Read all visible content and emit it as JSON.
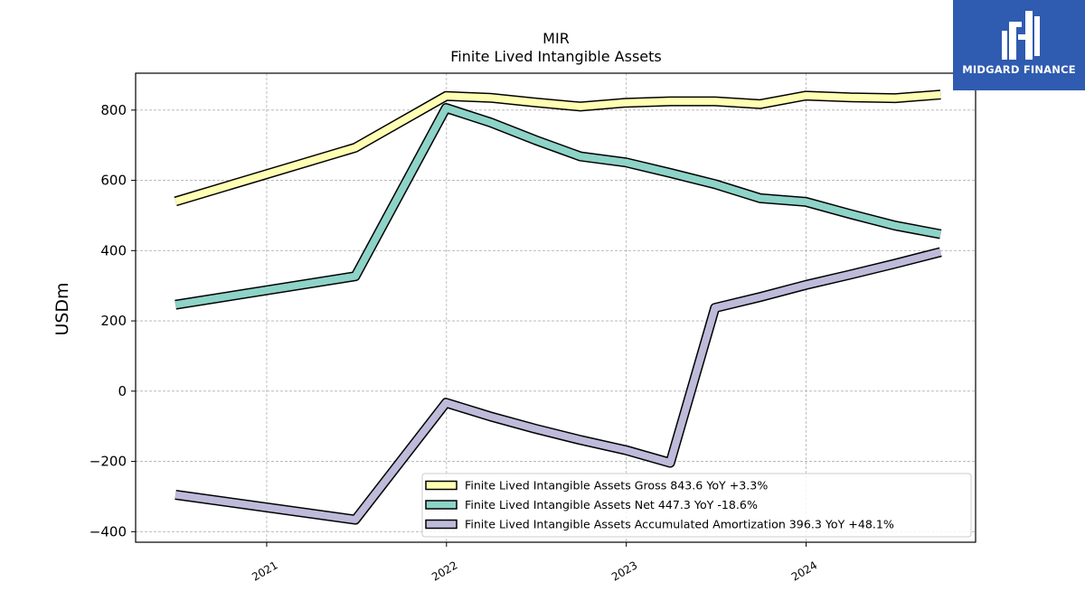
{
  "chart_data": {
    "type": "line",
    "title": "MIR",
    "subtitle": "Finite Lived Intangible Assets",
    "ylabel": "USDm",
    "xlabel": "",
    "ylim": [
      -430,
      905
    ],
    "xlim": [
      "2020-04-10",
      "2024-12-10"
    ],
    "yticks": [
      -400,
      -200,
      0,
      200,
      400,
      600,
      800
    ],
    "ytick_labels": [
      "−400",
      "−200",
      "0",
      "200",
      "400",
      "600",
      "800"
    ],
    "xticks": [
      "2021-01-01",
      "2022-01-01",
      "2023-01-01",
      "2024-01-01"
    ],
    "xtick_labels": [
      "2021",
      "2022",
      "2023",
      "2024"
    ],
    "grid": true,
    "legend_position": "lower-right",
    "series": [
      {
        "name": "Finite Lived Intangible Assets Gross",
        "legend_label": "Finite Lived Intangible Assets Gross  843.6 YoY +3.3%",
        "color": "#ffffb3",
        "points": [
          [
            "2020-06-30",
            540
          ],
          [
            "2021-06-30",
            693
          ],
          [
            "2021-12-31",
            840
          ],
          [
            "2022-03-31",
            835
          ],
          [
            "2022-06-30",
            822
          ],
          [
            "2022-09-30",
            810
          ],
          [
            "2022-12-31",
            821
          ],
          [
            "2023-03-31",
            825
          ],
          [
            "2023-06-30",
            825
          ],
          [
            "2023-09-30",
            817
          ],
          [
            "2023-12-31",
            841
          ],
          [
            "2024-03-31",
            836
          ],
          [
            "2024-06-30",
            834
          ],
          [
            "2024-09-30",
            844
          ]
        ]
      },
      {
        "name": "Finite Lived Intangible Assets Net",
        "legend_label": "Finite Lived Intangible Assets Net  447.3 YoY -18.6%",
        "color": "#8dd3c7",
        "points": [
          [
            "2020-06-30",
            246
          ],
          [
            "2021-06-30",
            327
          ],
          [
            "2021-12-31",
            806
          ],
          [
            "2022-03-31",
            765
          ],
          [
            "2022-06-30",
            715
          ],
          [
            "2022-09-30",
            668
          ],
          [
            "2022-12-31",
            651
          ],
          [
            "2023-03-31",
            621
          ],
          [
            "2023-06-30",
            589
          ],
          [
            "2023-09-30",
            549
          ],
          [
            "2023-12-31",
            539
          ],
          [
            "2024-03-31",
            504
          ],
          [
            "2024-06-30",
            471
          ],
          [
            "2024-09-30",
            447
          ]
        ]
      },
      {
        "name": "Finite Lived Intangible Assets Accumulated Amortization",
        "legend_label": "Finite Lived Intangible Assets Accumulated Amortization  396.3 YoY +48.1%",
        "color": "#bebada",
        "points": [
          [
            "2020-06-30",
            -295
          ],
          [
            "2021-06-30",
            -366
          ],
          [
            "2021-12-31",
            -33
          ],
          [
            "2022-03-31",
            -72
          ],
          [
            "2022-06-30",
            -107
          ],
          [
            "2022-09-30",
            -139
          ],
          [
            "2022-12-31",
            -168
          ],
          [
            "2023-03-31",
            -204
          ],
          [
            "2023-06-30",
            237
          ],
          [
            "2023-09-30",
            268
          ],
          [
            "2023-12-31",
            302
          ],
          [
            "2024-03-31",
            332
          ],
          [
            "2024-06-30",
            363
          ],
          [
            "2024-09-30",
            396
          ]
        ]
      }
    ]
  },
  "logo": {
    "text": "MIDGARD FINANCE",
    "bg_color": "#2f5bb0"
  }
}
